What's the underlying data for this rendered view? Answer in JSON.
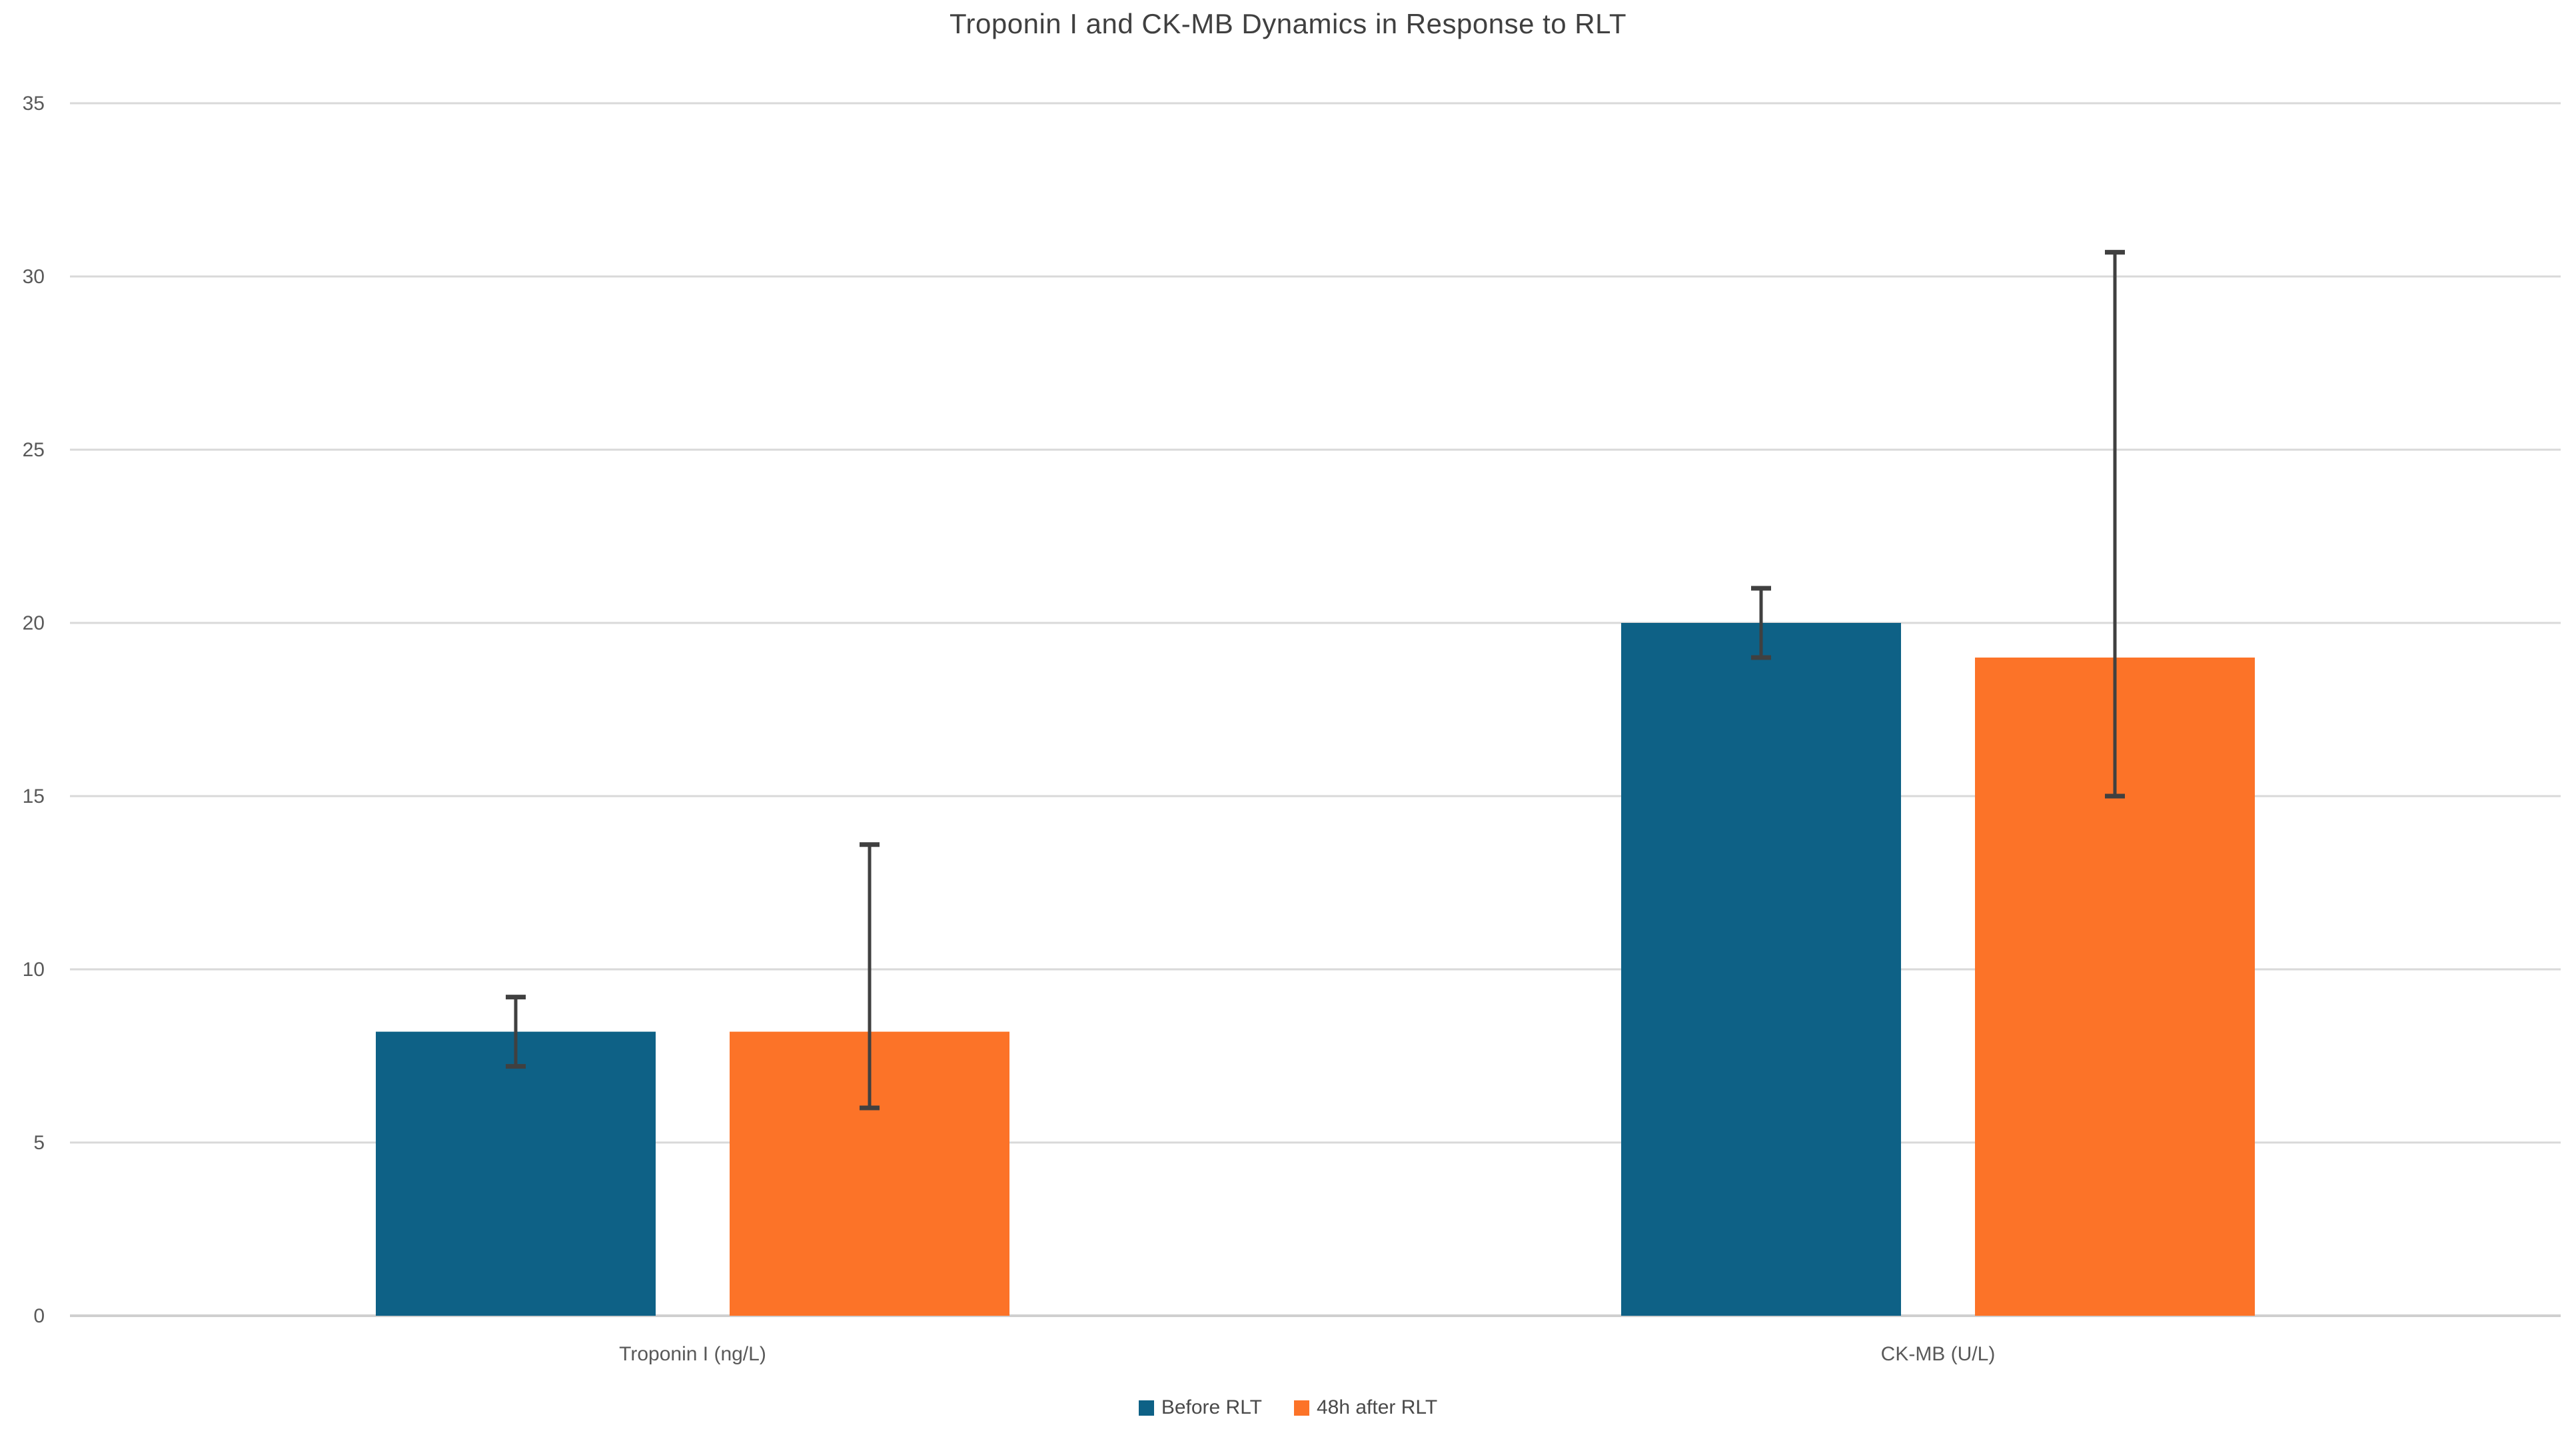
{
  "title": "Troponin I and CK-MB Dynamics in Response to RLT",
  "colors": {
    "background": "#FFFFFF",
    "title_text": "#404040",
    "tick_text": "#595959",
    "gridline": "#D9D9D9",
    "axis_line": "#CFCFCF",
    "error_bar": "#404040",
    "series_before": "#0E6186",
    "series_after": "#FC7328"
  },
  "chart_data": {
    "type": "bar",
    "title": "Troponin I and CK-MB Dynamics in Response to RLT",
    "categories": [
      "Troponin I (ng/L)",
      "CK-MB (U/L)"
    ],
    "series": [
      {
        "name": "Before RLT",
        "color": "#0E6186",
        "values": [
          8.2,
          20
        ],
        "error_low": [
          7.2,
          19
        ],
        "error_high": [
          9.2,
          21
        ]
      },
      {
        "name": "48h after RLT",
        "color": "#FC7328",
        "values": [
          8.2,
          19
        ],
        "error_low": [
          6,
          15
        ],
        "error_high": [
          13.6,
          30.7
        ]
      }
    ],
    "xlabel": "",
    "ylabel": "",
    "ylim": [
      0,
      35
    ],
    "yticks": [
      0,
      5,
      10,
      15,
      20,
      25,
      30,
      35
    ],
    "grid": true,
    "error_bars": true,
    "legend_position": "bottom"
  }
}
